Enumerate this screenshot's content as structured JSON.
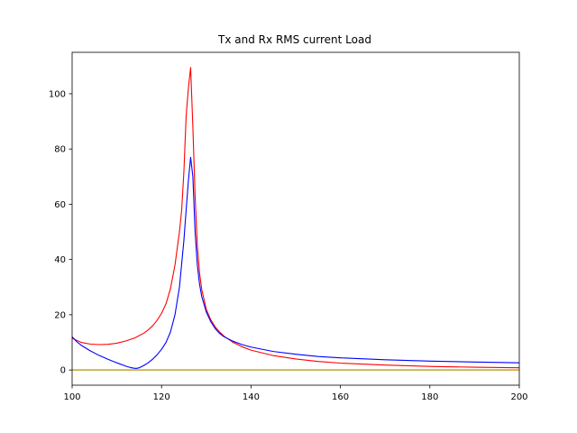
{
  "chart_data": {
    "type": "line",
    "title": "Tx and Rx RMS current Load",
    "xlabel": "",
    "ylabel": "",
    "xlim": [
      100,
      200
    ],
    "ylim": [
      -5.5,
      115
    ],
    "grid": false,
    "xticks": [
      100,
      120,
      140,
      160,
      180,
      200
    ],
    "yticks": [
      0,
      20,
      40,
      60,
      80,
      100
    ],
    "series": [
      {
        "color": "#ff0000",
        "x": [
          100,
          102,
          104,
          106,
          108,
          110,
          112,
          114,
          116,
          117,
          118,
          119,
          120,
          121,
          122,
          123,
          124,
          124.5,
          125,
          125.5,
          126,
          126.5,
          127,
          127.5,
          128,
          128.5,
          129,
          130,
          131,
          132,
          133,
          134,
          136,
          138,
          140,
          145,
          150,
          155,
          160,
          170,
          180,
          190,
          200
        ],
        "y": [
          11.5,
          10.0,
          9.4,
          9.2,
          9.3,
          9.7,
          10.5,
          11.6,
          13.3,
          14.5,
          16.0,
          18.0,
          20.5,
          24.0,
          29.5,
          38.0,
          50.0,
          58.0,
          72.0,
          92.0,
          102.0,
          109.5,
          88.0,
          63.0,
          45.0,
          35.0,
          29.0,
          22.0,
          18.2,
          15.6,
          13.7,
          12.2,
          10.0,
          8.4,
          7.2,
          5.2,
          4.0,
          3.1,
          2.5,
          1.8,
          1.3,
          1.0,
          0.8
        ]
      },
      {
        "color": "#0000ff",
        "x": [
          100,
          101,
          102,
          104,
          106,
          108,
          110,
          112,
          113,
          114,
          114.5,
          115,
          116,
          117,
          118,
          119,
          120,
          121,
          122,
          123,
          124,
          125,
          125.5,
          126,
          126.5,
          127,
          127.5,
          128,
          128.5,
          129,
          130,
          131,
          132,
          133,
          134,
          136,
          138,
          140,
          145,
          150,
          155,
          160,
          170,
          180,
          190,
          200
        ],
        "y": [
          12.0,
          10.3,
          9.0,
          7.0,
          5.3,
          3.9,
          2.6,
          1.4,
          0.9,
          0.6,
          0.6,
          0.8,
          1.6,
          2.6,
          3.9,
          5.5,
          7.5,
          10.0,
          13.8,
          20.0,
          30.0,
          47.0,
          58.0,
          68.5,
          77.0,
          70.0,
          50.0,
          38.0,
          31.0,
          26.5,
          21.0,
          17.5,
          15.0,
          13.2,
          12.0,
          10.4,
          9.2,
          8.3,
          6.7,
          5.7,
          4.9,
          4.4,
          3.7,
          3.2,
          2.9,
          2.6
        ]
      },
      {
        "color": "#2ca02c",
        "x": [
          100,
          200
        ],
        "y": [
          0,
          0
        ]
      },
      {
        "color": "#d8b24a",
        "x": [
          100,
          200
        ],
        "y": [
          0,
          0
        ]
      }
    ]
  }
}
